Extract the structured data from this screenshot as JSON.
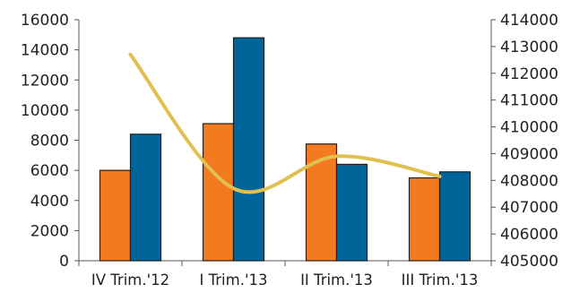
{
  "chart_data": {
    "type": "bar",
    "categories": [
      "IV Trim.'12",
      "I Trim.'13",
      "II Trim.'13",
      "III Trim.'13"
    ],
    "series": [
      {
        "kind": "bar",
        "axis": "left",
        "color": "#f47a20",
        "values": [
          6000,
          9100,
          7750,
          5500
        ]
      },
      {
        "kind": "bar",
        "axis": "left",
        "color": "#006699",
        "values": [
          8400,
          14800,
          6400,
          5900
        ]
      },
      {
        "kind": "line",
        "axis": "right",
        "color": "#e0c050",
        "smooth": true,
        "values": [
          412700,
          407700,
          408900,
          408150
        ]
      }
    ],
    "left_axis": {
      "ylim": [
        0,
        16000
      ],
      "ticks": [
        0,
        2000,
        4000,
        6000,
        8000,
        10000,
        12000,
        14000,
        16000
      ],
      "tick_labels": [
        "0",
        "2000",
        "4000",
        "6000",
        "8000",
        "10000",
        "12000",
        "14000",
        "16000"
      ]
    },
    "right_axis": {
      "ylim": [
        405000,
        414000
      ],
      "ticks": [
        405000,
        406000,
        407000,
        408000,
        409000,
        410000,
        411000,
        412000,
        413000,
        414000
      ],
      "tick_labels": [
        "405000",
        "406000",
        "407000",
        "408000",
        "409000",
        "410000",
        "411000",
        "412000",
        "413000",
        "414000"
      ]
    },
    "title": "",
    "xlabel": "",
    "ylabel": "",
    "grid": false,
    "legend": "none"
  }
}
